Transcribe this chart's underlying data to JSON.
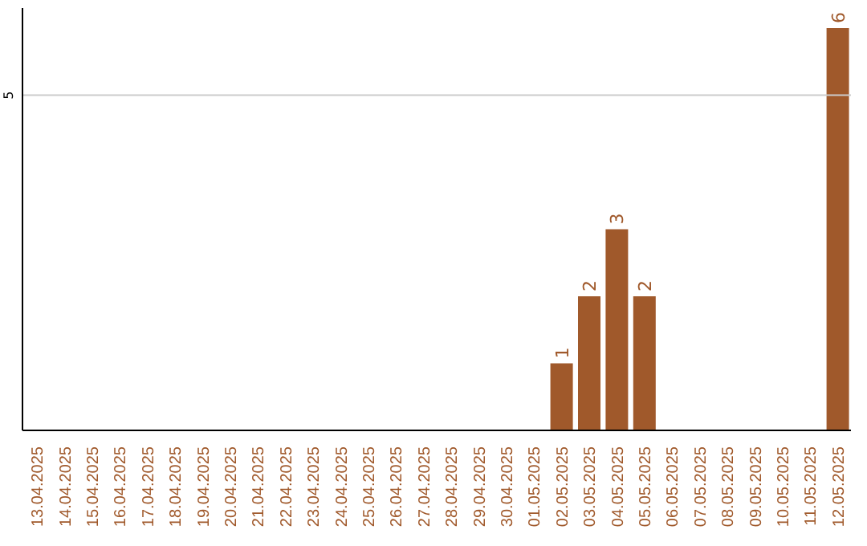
{
  "chart_data": {
    "type": "bar",
    "categories": [
      "13.04.2025",
      "14.04.2025",
      "15.04.2025",
      "16.04.2025",
      "17.04.2025",
      "18.04.2025",
      "19.04.2025",
      "20.04.2025",
      "21.04.2025",
      "22.04.2025",
      "23.04.2025",
      "24.04.2025",
      "25.04.2025",
      "26.04.2025",
      "27.04.2025",
      "28.04.2025",
      "29.04.2025",
      "30.04.2025",
      "01.05.2025",
      "02.05.2025",
      "03.05.2025",
      "04.05.2025",
      "05.05.2025",
      "06.05.2025",
      "07.05.2025",
      "08.05.2025",
      "09.05.2025",
      "10.05.2025",
      "11.05.2025",
      "12.05.2025"
    ],
    "values": [
      null,
      null,
      null,
      null,
      null,
      null,
      null,
      null,
      null,
      null,
      null,
      null,
      null,
      null,
      null,
      null,
      null,
      null,
      null,
      1,
      2,
      3,
      2,
      null,
      null,
      null,
      null,
      null,
      null,
      6
    ],
    "value_labels": [
      null,
      null,
      null,
      null,
      null,
      null,
      null,
      null,
      null,
      null,
      null,
      null,
      null,
      null,
      null,
      null,
      null,
      null,
      null,
      "1",
      "2",
      "3",
      "2",
      null,
      null,
      null,
      null,
      null,
      null,
      "6"
    ],
    "color": "#a0592b",
    "ylim": [
      0,
      6.3
    ],
    "ref_lines": [
      {
        "axis": "y",
        "value": 5,
        "label": "5",
        "color": "#cccccc"
      }
    ]
  }
}
